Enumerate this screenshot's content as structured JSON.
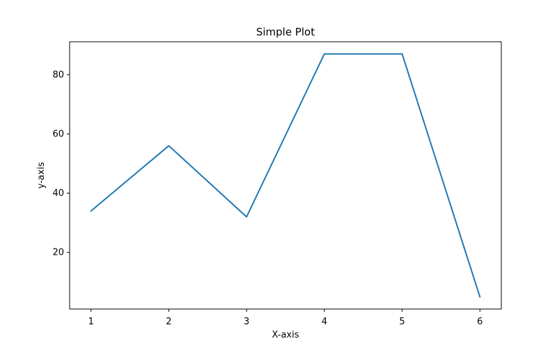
{
  "chart_data": {
    "type": "line",
    "title": "Simple Plot",
    "xlabel": "X-axis",
    "ylabel": "y-axis",
    "x": [
      1,
      2,
      3,
      4,
      5,
      6
    ],
    "series": [
      {
        "values": [
          34,
          56,
          32,
          87,
          87,
          5
        ],
        "color": "#1f77b4"
      }
    ],
    "xlim": [
      0.725,
      6.275
    ],
    "ylim": [
      0.9,
      91.1
    ],
    "xticks": [
      1,
      2,
      3,
      4,
      5,
      6
    ],
    "yticks": [
      20,
      40,
      60,
      80
    ],
    "grid": false,
    "legend": "none"
  }
}
